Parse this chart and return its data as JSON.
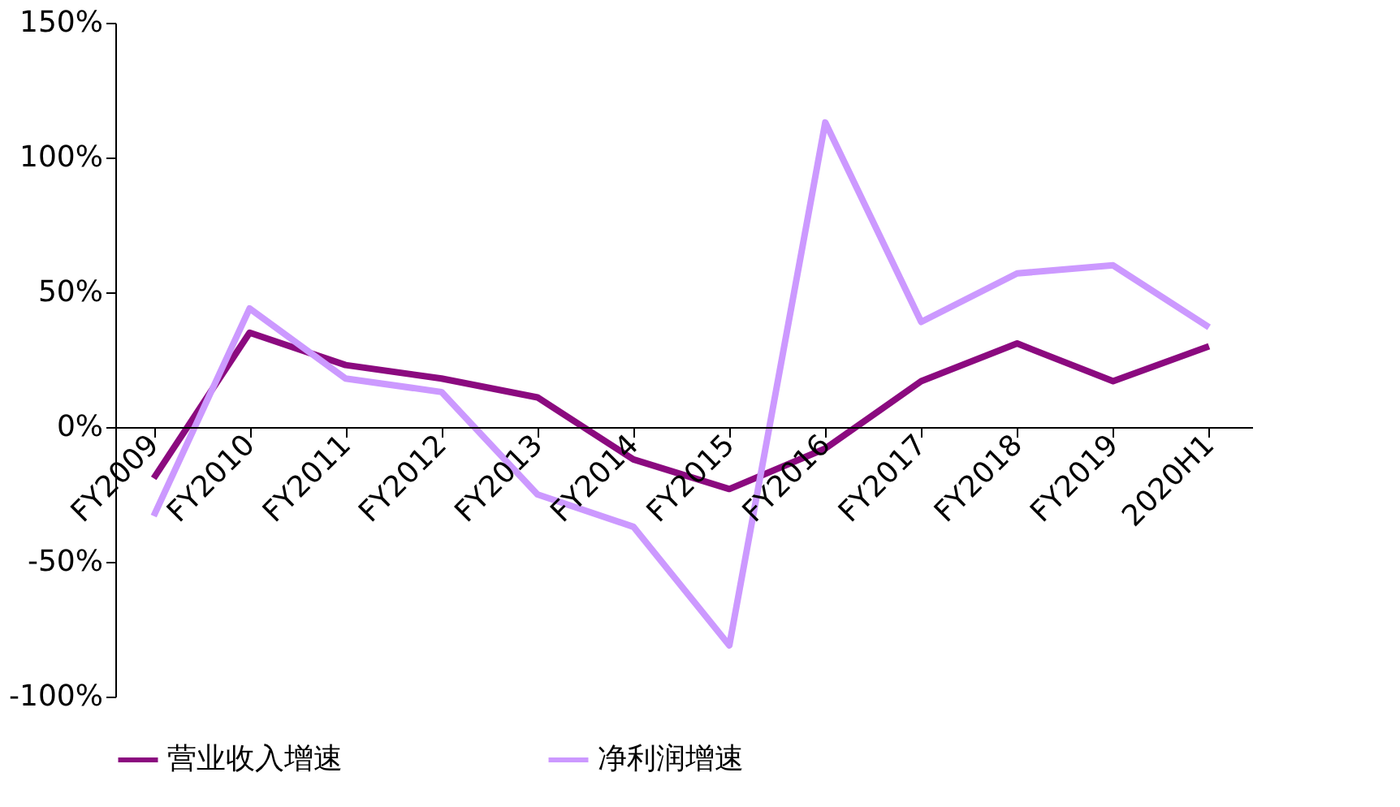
{
  "chart_data": {
    "type": "line",
    "categories": [
      "FY2009",
      "FY2010",
      "FY2011",
      "FY2012",
      "FY2013",
      "FY2014",
      "FY2015",
      "FY2016",
      "FY2017",
      "FY2018",
      "FY2019",
      "2020H1"
    ],
    "series": [
      {
        "name": "营业收入增速",
        "color": "#8b0a7f",
        "values": [
          -19,
          35,
          23,
          18,
          11,
          -12,
          -23,
          -8,
          17,
          31,
          17,
          30
        ]
      },
      {
        "name": "净利润增速",
        "color": "#cc99ff",
        "values": [
          -33,
          44,
          18,
          13,
          -25,
          -37,
          -81,
          113,
          39,
          57,
          60,
          37
        ]
      }
    ],
    "ylim": [
      -100,
      150
    ],
    "yticks": [
      {
        "value": -100,
        "label": "-100%"
      },
      {
        "value": -50,
        "label": "-50%"
      },
      {
        "value": 0,
        "label": "0%"
      },
      {
        "value": 50,
        "label": "50%"
      },
      {
        "value": 100,
        "label": "100%"
      },
      {
        "value": 150,
        "label": "150%"
      }
    ],
    "grid": false,
    "legend": "bottom",
    "marker": "none",
    "line_style": "solid"
  }
}
